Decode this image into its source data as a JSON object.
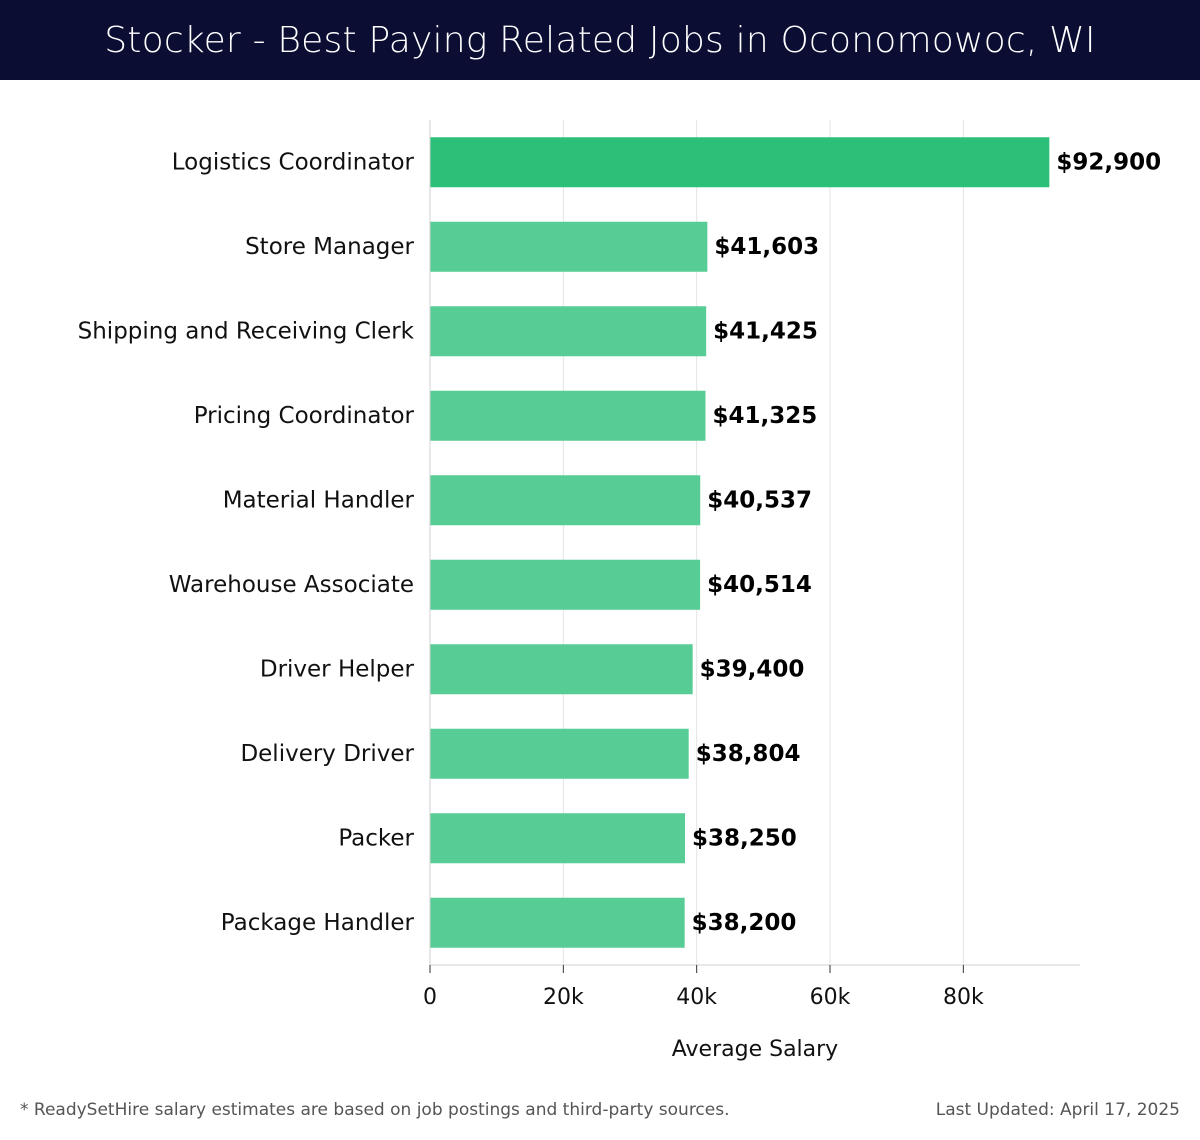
{
  "header": {
    "title": "Stocker - Best Paying Related Jobs in Oconomowoc, WI"
  },
  "footer": {
    "note": "* ReadySetHire salary estimates are based on job postings and third-party sources.",
    "updated": "Last Updated: April 17, 2025"
  },
  "colors": {
    "highlight_bar": "#2bbf78",
    "bar": "#57cc95",
    "header_bg": "#0b0d33"
  },
  "chart_data": {
    "type": "bar",
    "orientation": "horizontal",
    "title": "Stocker - Best Paying Related Jobs in Oconomowoc, WI",
    "xlabel": "Average Salary",
    "ylabel": "",
    "xlim": [
      0,
      97500
    ],
    "x_ticks": [
      0,
      20000,
      40000,
      60000,
      80000
    ],
    "x_tick_labels": [
      "0",
      "20k",
      "40k",
      "60k",
      "80k"
    ],
    "grid": true,
    "categories": [
      "Logistics Coordinator",
      "Store Manager",
      "Shipping and Receiving Clerk",
      "Pricing Coordinator",
      "Material Handler",
      "Warehouse Associate",
      "Driver Helper",
      "Delivery Driver",
      "Packer",
      "Package Handler"
    ],
    "values": [
      92900,
      41603,
      41425,
      41325,
      40537,
      40514,
      39400,
      38804,
      38250,
      38200
    ],
    "value_labels": [
      "$92,900",
      "$41,603",
      "$41,425",
      "$41,325",
      "$40,537",
      "$40,514",
      "$39,400",
      "$38,804",
      "$38,250",
      "$38,200"
    ]
  }
}
